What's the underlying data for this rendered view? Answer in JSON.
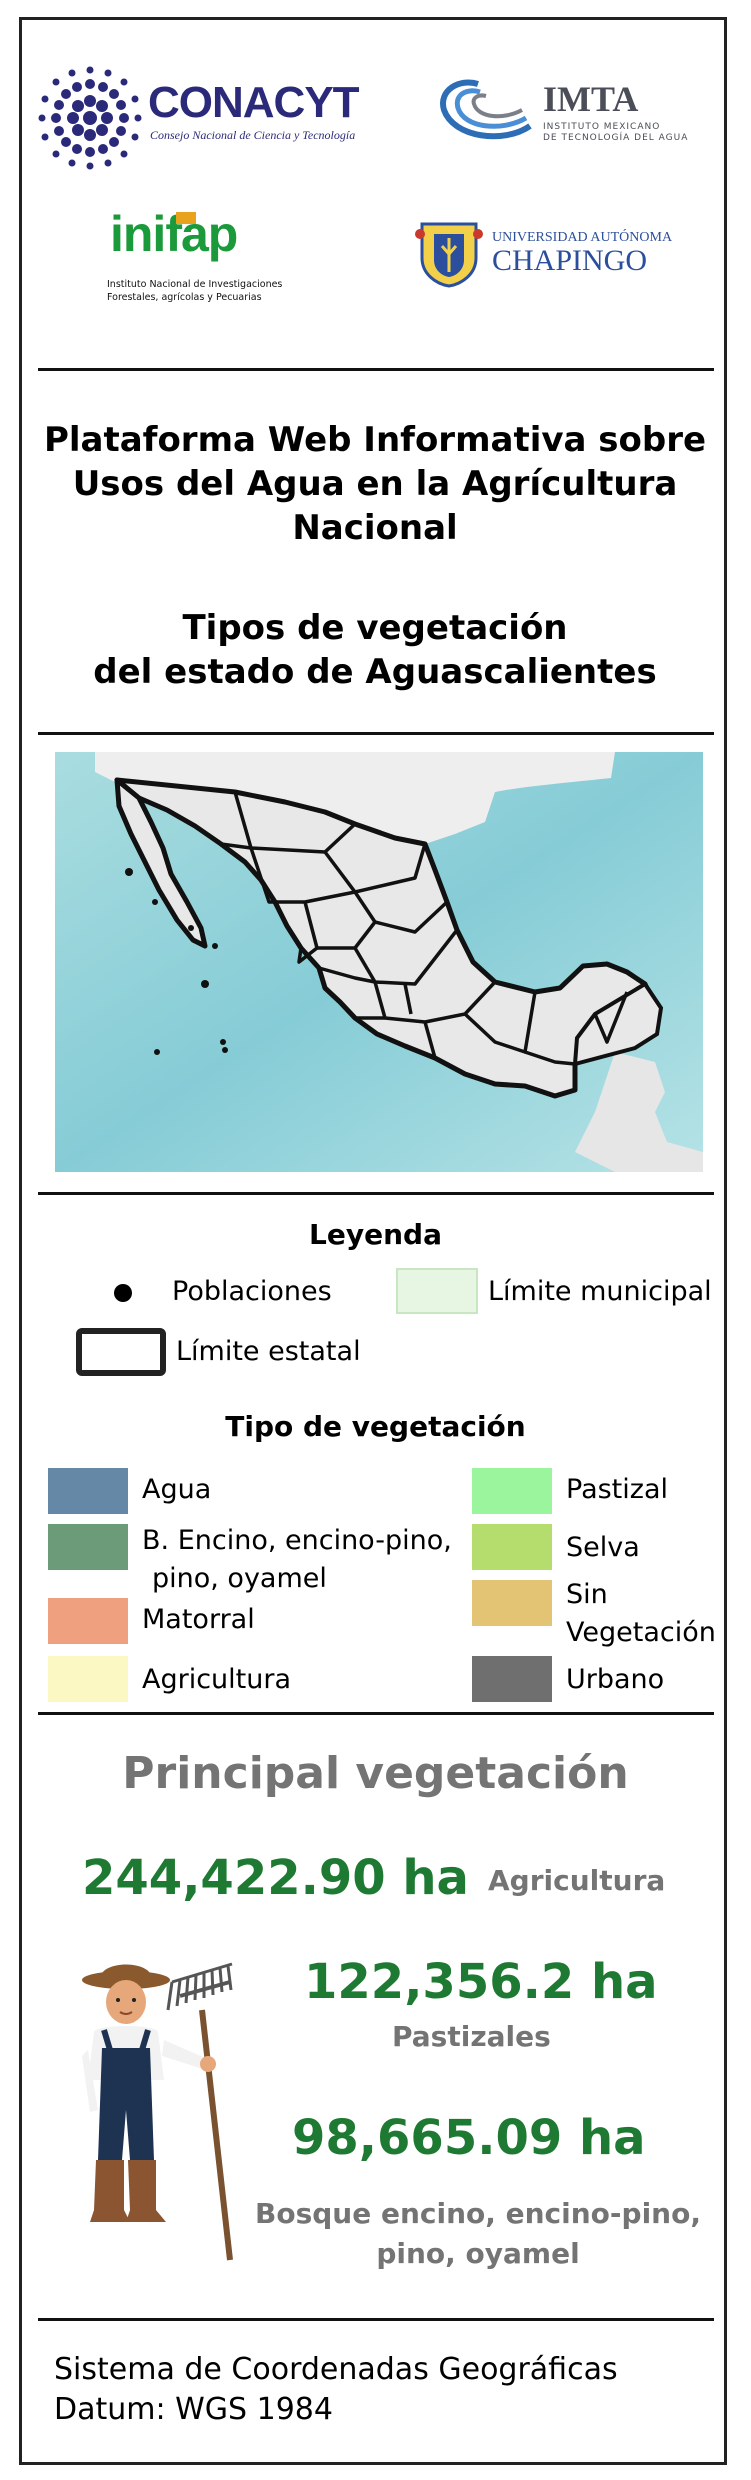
{
  "logos": {
    "conacyt": {
      "name": "CONACYT",
      "subtitle": "Consejo Nacional de Ciencia y Tecnología"
    },
    "imta": {
      "name": "IMTA",
      "subtitle_line1": "INSTITUTO MEXICANO",
      "subtitle_line2": "DE TECNOLOGÍA DEL AGUA"
    },
    "inifap": {
      "name": "inifap",
      "subtitle_line1": "Instituto Nacional de Investigaciones",
      "subtitle_line2": "Forestales, agrícolas y Pecuarias"
    },
    "chapingo": {
      "line1": "UNIVERSIDAD AUTÓNOMA",
      "line2": "CHAPINGO"
    }
  },
  "header": {
    "title_line1": "Plataforma Web Informativa sobre",
    "title_line2": "Usos del Agua en la Agrícultura",
    "title_line3": "Nacional",
    "subtitle_line1": "Tipos de vegetación",
    "subtitle_line2": "del estado de Aguascalientes"
  },
  "map": {
    "description_icon": "mexico-map"
  },
  "legend": {
    "title": "Leyenda",
    "poblaciones": "Poblaciones",
    "limite_municipal": "Límite municipal",
    "limite_estatal": "Límite estatal",
    "veg_title": "Tipo de vegetación",
    "items_left": [
      {
        "label": "Agua",
        "color": "#6488a6"
      },
      {
        "label_line1": "B. Encino, encino-pino,",
        "label_line2": "pino, oyamel",
        "color": "#6b9b78"
      },
      {
        "label": "Matorral",
        "color": "#eea07f"
      },
      {
        "label": "Agricultura",
        "color": "#fbf8c4"
      }
    ],
    "items_right": [
      {
        "label": "Pastizal",
        "color": "#9bf59c"
      },
      {
        "label": "Selva",
        "color": "#b4dd6e"
      },
      {
        "label_line1": "Sin",
        "label_line2": "Vegetación",
        "color": "#e2c474"
      },
      {
        "label": "Urbano",
        "color": "#6f6f6f"
      }
    ]
  },
  "principal": {
    "title": "Principal vegetación",
    "items": [
      {
        "value": "244,422.90 ha",
        "label": "Agricultura"
      },
      {
        "value": "122,356.2 ha",
        "label": "Pastizales"
      },
      {
        "value": "98,665.09 ha",
        "label_line1": "Bosque encino, encino-pino,",
        "label_line2": "pino, oyamel"
      }
    ]
  },
  "footer": {
    "line1": "Sistema de Coordenadas Geográficas",
    "line2": "Datum: WGS 1984"
  },
  "colors": {
    "green_value": "#1e7a32",
    "grey_label": "#747474",
    "conacyt_blue": "#2b2a7a",
    "inifap_green": "#1a9a3a"
  }
}
